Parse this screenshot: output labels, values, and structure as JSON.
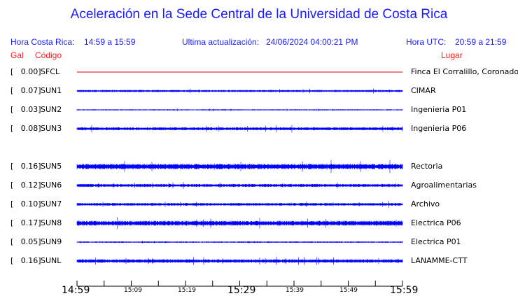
{
  "title": "Aceleración en la Sede Central de la Universidad de Costa Rica",
  "header": {
    "local_label": "Hora Costa Rica:",
    "local_range": "14:59 a 15:59",
    "update_label": "Ultima actualización:",
    "update_value": "24/06/2024 04:00:21 PM",
    "utc_label": "Hora UTC:",
    "utc_range": "20:59 a 21:59"
  },
  "columns": {
    "gal": "Gal",
    "code": "Código",
    "place": "Lugar"
  },
  "colors": {
    "trace": "#0000ff",
    "reference_trace": "#dd0000",
    "header": "#1a1aff",
    "column_header": "#ff1a1a"
  },
  "stations": [
    {
      "gal": "[   0.00]",
      "code": "SFCL",
      "place": "Finca El Corralillo, Coronado"
    },
    {
      "gal": "[   0.07]",
      "code": "SUN1",
      "place": "CIMAR"
    },
    {
      "gal": "[   0.03]",
      "code": "SUN2",
      "place": "Ingenieria P01"
    },
    {
      "gal": "[   0.08]",
      "code": "SUN3",
      "place": "Ingenieria P06"
    },
    {
      "gal": "[   0.16]",
      "code": "SUN5",
      "place": "Rectoria"
    },
    {
      "gal": "[   0.12]",
      "code": "SUN6",
      "place": "Agroalimentarias"
    },
    {
      "gal": "[   0.10]",
      "code": "SUN7",
      "place": "Archivo"
    },
    {
      "gal": "[   0.17]",
      "code": "SUN8",
      "place": "Electrica P06"
    },
    {
      "gal": "[   0.05]",
      "code": "SUN9",
      "place": "Electrica P01"
    },
    {
      "gal": "[   0.16]",
      "code": "SUNL",
      "place": "LANAMME-CTT"
    }
  ],
  "time_axis": {
    "major": [
      "14:59",
      "15:29",
      "15:59"
    ],
    "minor": [
      "15:09",
      "15:19",
      "15:39",
      "15:49"
    ]
  }
}
